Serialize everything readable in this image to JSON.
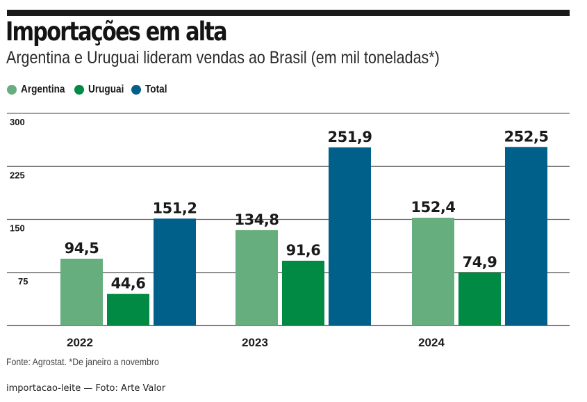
{
  "header": {
    "title": "Importações em alta",
    "subtitle": "Argentina e Uruguai lideram vendas ao Brasil (em mil toneladas*)"
  },
  "legend": [
    {
      "label": "Argentina",
      "color": "#66ae7d"
    },
    {
      "label": "Uruguai",
      "color": "#008a44"
    },
    {
      "label": "Total",
      "color": "#00608a"
    }
  ],
  "chart_data": {
    "type": "bar",
    "title": "Importações em alta",
    "subtitle": "Argentina e Uruguai lideram vendas ao Brasil (em mil toneladas*)",
    "categories": [
      "2022",
      "2023",
      "2024"
    ],
    "series": [
      {
        "name": "Argentina",
        "color": "#66ae7d",
        "values": [
          94.5,
          134.8,
          152.4
        ],
        "labels": [
          "94,5",
          "134,8",
          "152,4"
        ]
      },
      {
        "name": "Uruguai",
        "color": "#008a44",
        "values": [
          44.6,
          91.6,
          74.9
        ],
        "labels": [
          "44,6",
          "91,6",
          "74,9"
        ]
      },
      {
        "name": "Total",
        "color": "#00608a",
        "values": [
          151.2,
          251.9,
          252.5
        ],
        "labels": [
          "151,2",
          "251,9",
          "252,5"
        ]
      }
    ],
    "xlabel": "",
    "ylabel": "",
    "ylim": [
      0,
      300
    ],
    "yticks": [
      75,
      150,
      225,
      300
    ],
    "ytick_labels": [
      "75",
      "150",
      "225",
      "300"
    ],
    "grid": true,
    "legend_position": "top-left"
  },
  "footer": {
    "source": "Fonte: Agrostat. *De janeiro a novembro",
    "caption": "importacao-leite — Foto: Arte Valor"
  }
}
